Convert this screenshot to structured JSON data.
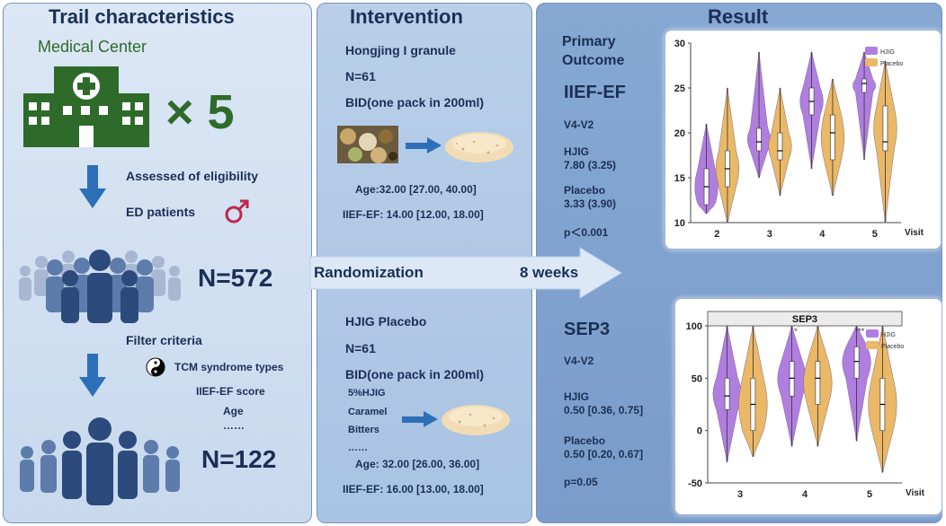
{
  "left": {
    "title": "Trail characteristics",
    "center_label": "Medical Center",
    "multiplier": "× 5",
    "assessed": "Assessed of eligibility",
    "ed_patients": "ED patients",
    "n_total": "N=572",
    "filter_title": "Filter criteria",
    "filter_items": [
      "TCM syndrome types",
      "IIEF-EF score",
      "Age",
      "……"
    ],
    "n_final": "N=122"
  },
  "middle": {
    "title": "Intervention",
    "drug_name": "Hongjing I granule",
    "drug_n": "N=61",
    "drug_dose": "BID(one pack in 200ml)",
    "drug_age": "Age:32.00 [27.00, 40.00]",
    "drug_iief": "IIEF-EF: 14.00 [12.00, 18.00]",
    "placebo_name": "HJIG Placebo",
    "placebo_n": "N=61",
    "placebo_dose": "BID(one pack in 200ml)",
    "placebo_ingredients": [
      "5%HJIG",
      "Caramel",
      "Bitters",
      "……"
    ],
    "placebo_age": "Age: 32.00 [26.00, 36.00]",
    "placebo_iief": "IIEF-EF:  16.00 [13.00, 18.00]"
  },
  "arrow": {
    "randomization": "Randomization",
    "duration": "8 weeks"
  },
  "right": {
    "title": "Result",
    "primary_line1": "Primary",
    "primary_line2": "Outcome",
    "iief_title": "IIEF-EF",
    "iief_change": "V4-V2",
    "iief_hjig_label": "HJIG",
    "iief_hjig_value": "7.80 (3.25)",
    "iief_placebo_label": "Placebo",
    "iief_placebo_value": "3.33 (3.90)",
    "iief_p": "p＜0.001",
    "sep_title": "SEP3",
    "sep_change": "V4-V2",
    "sep_hjig_label": "HJIG",
    "sep_hjig_value": "0.50 [0.36, 0.75]",
    "sep_placebo_label": "Placebo",
    "sep_placebo_value": "0.50 [0.20, 0.67]",
    "sep_p": "p=0.05"
  },
  "colors": {
    "hjig": "#b07ee0",
    "placebo": "#eab866",
    "title_text": "#1b2f56",
    "center_green": "#2e6b2a",
    "person_blue": "#2c4a7c",
    "arrow_blue": "#2d6fb8"
  },
  "chart_data": [
    {
      "type": "violin",
      "xlabel": "Visit",
      "categories": [
        "2",
        "3",
        "4",
        "5"
      ],
      "ylim": [
        10,
        30
      ],
      "yticks": [
        10,
        15,
        20,
        25,
        30
      ],
      "legend": "top-right",
      "series": [
        {
          "name": "HJIG",
          "medians": [
            14,
            19,
            23.5,
            25.5
          ],
          "q1": [
            12,
            18,
            22,
            24.5
          ],
          "q3": [
            16,
            20.5,
            25,
            26
          ],
          "min": [
            11,
            15,
            16,
            17
          ],
          "max": [
            21,
            29,
            29,
            29
          ]
        },
        {
          "name": "Placebo",
          "medians": [
            16,
            18,
            20,
            19
          ],
          "q1": [
            14,
            17,
            17,
            18
          ],
          "q3": [
            18,
            20,
            22,
            23
          ],
          "min": [
            10,
            13,
            13,
            10
          ],
          "max": [
            25,
            25,
            26,
            28
          ]
        }
      ]
    },
    {
      "type": "violin",
      "title": "SEP3",
      "xlabel": "Visit",
      "categories": [
        "3",
        "4",
        "5"
      ],
      "ylim": [
        -50,
        100
      ],
      "yticks": [
        -50,
        0,
        50,
        100
      ],
      "legend": "top-right",
      "annotations": [
        "*",
        "***"
      ],
      "series": [
        {
          "name": "HJIG",
          "medians": [
            33,
            50,
            66
          ],
          "q1": [
            20,
            33,
            50
          ],
          "q3": [
            50,
            66,
            80
          ],
          "min": [
            -30,
            -15,
            -10
          ],
          "max": [
            100,
            100,
            100
          ]
        },
        {
          "name": "Placebo",
          "medians": [
            25,
            50,
            25
          ],
          "q1": [
            0,
            25,
            0
          ],
          "q3": [
            50,
            66,
            50
          ],
          "min": [
            -25,
            -15,
            -40
          ],
          "max": [
            100,
            100,
            100
          ]
        }
      ]
    }
  ]
}
